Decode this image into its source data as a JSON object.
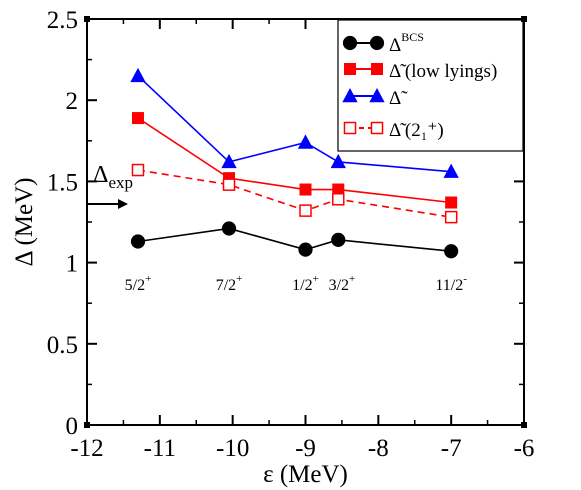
{
  "chart_data": {
    "type": "line",
    "xlabel": "ε (MeV)",
    "ylabel": "Δ (MeV)",
    "xlim": [
      -12,
      -6
    ],
    "ylim": [
      0,
      2.5
    ],
    "x_ticks": [
      -12,
      -11,
      -10,
      -9,
      -8,
      -7,
      -6
    ],
    "x_tick_labels": [
      "-12",
      "-11",
      "-10",
      "-9",
      "-8",
      "-7",
      "-6"
    ],
    "y_ticks": [
      0,
      0.5,
      1,
      1.5,
      2,
      2.5
    ],
    "y_tick_labels": [
      "0",
      "0.5",
      "1",
      "1.5",
      "2",
      "2.5"
    ],
    "grid": false,
    "legend_position": "top-right",
    "series": [
      {
        "name": "Δ^BCS",
        "name_base": "Δ",
        "name_sup": "BCS",
        "name_extra": "",
        "color": "#000000",
        "marker": "circle",
        "dashed": false,
        "x": [
          -11.3,
          -10.05,
          -9.0,
          -8.55,
          -7.0
        ],
        "y": [
          1.13,
          1.21,
          1.08,
          1.14,
          1.07
        ]
      },
      {
        "name": "Δ̃ (low lyings)",
        "name_base": "Δ̃",
        "name_sup": "",
        "name_extra": "  (low lyings)",
        "color": "#ff0000",
        "marker": "square",
        "dashed": false,
        "x": [
          -11.3,
          -10.05,
          -9.0,
          -8.55,
          -7.0
        ],
        "y": [
          1.89,
          1.52,
          1.45,
          1.45,
          1.37
        ]
      },
      {
        "name": "Δ̃",
        "name_base": "Δ̃",
        "name_sup": "",
        "name_extra": "",
        "color": "#0000ff",
        "marker": "triangle",
        "dashed": false,
        "x": [
          -11.3,
          -10.05,
          -9.0,
          -8.55,
          -7.0
        ],
        "y": [
          2.15,
          1.62,
          1.74,
          1.62,
          1.56
        ]
      },
      {
        "name": "Δ̃ (2_1^+)",
        "name_base": "Δ̃",
        "name_sup": "",
        "name_extra": " (2₁⁺)",
        "color": "#ff0000",
        "marker": "open-square",
        "dashed": true,
        "x": [
          -11.3,
          -10.05,
          -9.0,
          -8.55,
          -7.0
        ],
        "y": [
          1.57,
          1.48,
          1.32,
          1.39,
          1.28
        ]
      }
    ],
    "annotations": [
      {
        "text": "5/2",
        "sup": "+",
        "x": -11.3,
        "y": 0.83
      },
      {
        "text": "7/2",
        "sup": "+",
        "x": -10.05,
        "y": 0.83
      },
      {
        "text": "1/2",
        "sup": "+",
        "x": -9.0,
        "y": 0.83
      },
      {
        "text": "3/2",
        "sup": "+",
        "x": -8.5,
        "y": 0.83
      },
      {
        "text": "11/2",
        "sup": "-",
        "x": -7.0,
        "y": 0.83
      }
    ],
    "exp_marker": {
      "text": "Δ",
      "sub": "exp"
    }
  }
}
